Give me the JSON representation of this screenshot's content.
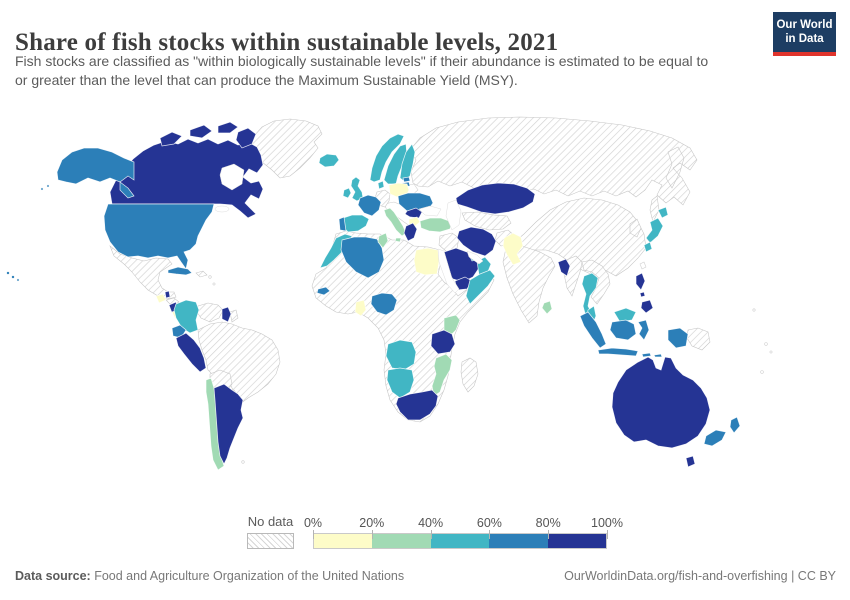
{
  "header": {
    "title": "Share of fish stocks within sustainable levels, 2021",
    "subtitle_line1": "Fish stocks are classified as \"within biologically sustainable levels\" if their abundance is estimated to be equal to",
    "subtitle_line2": "or greater than the level that can produce the Maximum Sustainable Yield (MSY).",
    "logo": {
      "line1": "Our World",
      "line2": "in Data",
      "bg_color": "#1d3d63",
      "accent_color": "#e0342c"
    }
  },
  "footer": {
    "source_label": "Data source:",
    "source_text": " Food and Agriculture Organization of the United Nations",
    "link_text": "OurWorldinData.org/fish-and-overfishing",
    "license_text": " | CC BY"
  },
  "chart_data": {
    "type": "choropleth",
    "title": "Share of fish stocks within sustainable levels, 2021",
    "unit": "%",
    "year": "2021",
    "legend_position": "bottom",
    "legend": {
      "no_data_label": "No data",
      "tick_labels": [
        "0%",
        "20%",
        "40%",
        "60%",
        "80%",
        "100%"
      ],
      "bins": [
        {
          "range": "0-20%",
          "color": "#fdfcc8"
        },
        {
          "range": "20-40%",
          "color": "#a1dab4"
        },
        {
          "range": "40-60%",
          "color": "#41b6c4"
        },
        {
          "range": "60-80%",
          "color": "#2c7fb8"
        },
        {
          "range": "80-100%",
          "color": "#253494"
        }
      ]
    },
    "countries": [
      {
        "name": "Canada",
        "bin": "80-100%"
      },
      {
        "name": "United States",
        "bin": "60-80%"
      },
      {
        "name": "Mexico",
        "bin": "No data"
      },
      {
        "name": "Greenland",
        "bin": "No data"
      },
      {
        "name": "Cuba",
        "bin": "60-80%"
      },
      {
        "name": "Guatemala",
        "bin": "0-20%"
      },
      {
        "name": "Belize",
        "bin": "80-100%"
      },
      {
        "name": "Honduras",
        "bin": "No data"
      },
      {
        "name": "Nicaragua",
        "bin": "80-100%"
      },
      {
        "name": "Costa Rica",
        "bin": "0-20%"
      },
      {
        "name": "Panama",
        "bin": "No data"
      },
      {
        "name": "Colombia",
        "bin": "40-60%"
      },
      {
        "name": "Venezuela",
        "bin": "No data"
      },
      {
        "name": "Guyana",
        "bin": "80-100%"
      },
      {
        "name": "Suriname",
        "bin": "No data"
      },
      {
        "name": "Ecuador",
        "bin": "60-80%"
      },
      {
        "name": "Peru",
        "bin": "80-100%"
      },
      {
        "name": "Brazil",
        "bin": "No data"
      },
      {
        "name": "Bolivia",
        "bin": "No data"
      },
      {
        "name": "Paraguay",
        "bin": "No data"
      },
      {
        "name": "Chile",
        "bin": "20-40%"
      },
      {
        "name": "Argentina",
        "bin": "80-100%"
      },
      {
        "name": "Iceland",
        "bin": "40-60%"
      },
      {
        "name": "United Kingdom",
        "bin": "40-60%"
      },
      {
        "name": "Ireland",
        "bin": "40-60%"
      },
      {
        "name": "Norway",
        "bin": "40-60%"
      },
      {
        "name": "Sweden",
        "bin": "40-60%"
      },
      {
        "name": "Finland",
        "bin": "40-60%"
      },
      {
        "name": "Denmark",
        "bin": "40-60%"
      },
      {
        "name": "Estonia",
        "bin": "60-80%"
      },
      {
        "name": "Latvia",
        "bin": "60-80%"
      },
      {
        "name": "Germany",
        "bin": "No data"
      },
      {
        "name": "Poland",
        "bin": "0-20%"
      },
      {
        "name": "France",
        "bin": "60-80%"
      },
      {
        "name": "Spain",
        "bin": "40-60%"
      },
      {
        "name": "Portugal",
        "bin": "60-80%"
      },
      {
        "name": "Italy",
        "bin": "20-40%"
      },
      {
        "name": "Ukraine",
        "bin": "60-80%"
      },
      {
        "name": "Romania",
        "bin": "80-100%"
      },
      {
        "name": "Bulgaria",
        "bin": "0-20%"
      },
      {
        "name": "Greece",
        "bin": "80-100%"
      },
      {
        "name": "Turkey",
        "bin": "20-40%"
      },
      {
        "name": "Russia",
        "bin": "No data"
      },
      {
        "name": "Kazakhstan",
        "bin": "80-100%"
      },
      {
        "name": "Iran",
        "bin": "80-100%"
      },
      {
        "name": "Saudi Arabia",
        "bin": "80-100%"
      },
      {
        "name": "Yemen",
        "bin": "80-100%"
      },
      {
        "name": "Oman",
        "bin": "40-60%"
      },
      {
        "name": "United Arab Emirates",
        "bin": "40-60%"
      },
      {
        "name": "Pakistan",
        "bin": "0-20%"
      },
      {
        "name": "India",
        "bin": "No data"
      },
      {
        "name": "Sri Lanka",
        "bin": "20-40%"
      },
      {
        "name": "Bangladesh",
        "bin": "80-100%"
      },
      {
        "name": "Myanmar",
        "bin": "No data"
      },
      {
        "name": "Vietnam",
        "bin": "No data"
      },
      {
        "name": "Thailand",
        "bin": "40-60%"
      },
      {
        "name": "Malaysia",
        "bin": "40-60%"
      },
      {
        "name": "Indonesia",
        "bin": "60-80%"
      },
      {
        "name": "Philippines",
        "bin": "80-100%"
      },
      {
        "name": "China",
        "bin": "No data"
      },
      {
        "name": "South Korea",
        "bin": "No data"
      },
      {
        "name": "Japan",
        "bin": "40-60%"
      },
      {
        "name": "Papua New Guinea",
        "bin": "No data"
      },
      {
        "name": "Australia",
        "bin": "80-100%"
      },
      {
        "name": "New Zealand",
        "bin": "60-80%"
      },
      {
        "name": "Morocco",
        "bin": "40-60%"
      },
      {
        "name": "Algeria",
        "bin": "60-80%"
      },
      {
        "name": "Tunisia",
        "bin": "20-40%"
      },
      {
        "name": "Libya",
        "bin": "No data"
      },
      {
        "name": "Egypt",
        "bin": "0-20%"
      },
      {
        "name": "Senegal",
        "bin": "60-80%"
      },
      {
        "name": "Ghana",
        "bin": "0-20%"
      },
      {
        "name": "Nigeria",
        "bin": "60-80%"
      },
      {
        "name": "Ethiopia",
        "bin": "No data"
      },
      {
        "name": "Somalia",
        "bin": "40-60%"
      },
      {
        "name": "Kenya",
        "bin": "20-40%"
      },
      {
        "name": "Tanzania",
        "bin": "80-100%"
      },
      {
        "name": "Mozambique",
        "bin": "20-40%"
      },
      {
        "name": "Angola",
        "bin": "40-60%"
      },
      {
        "name": "Namibia",
        "bin": "40-60%"
      },
      {
        "name": "South Africa",
        "bin": "80-100%"
      },
      {
        "name": "Madagascar",
        "bin": "No data"
      }
    ]
  }
}
